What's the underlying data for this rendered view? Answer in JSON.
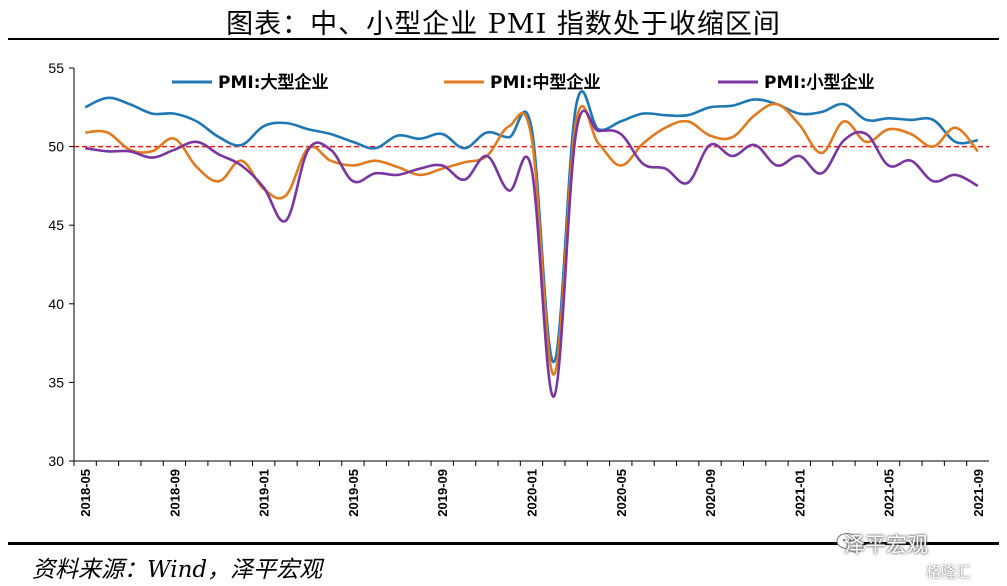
{
  "title": "图表：中、小型企业 PMI 指数处于收缩区间",
  "source": "资料来源：Wind，泽平宏观",
  "watermark": {
    "name": "泽平宏观",
    "platform": "格隆汇"
  },
  "colors": {
    "large": "#1f78b4",
    "medium": "#e07b1f",
    "small": "#7b35a0",
    "reference": "#e02020"
  },
  "chart_data": {
    "type": "line",
    "ylim": [
      30,
      55
    ],
    "yticks": [
      "30",
      "35",
      "40",
      "45",
      "50",
      "55"
    ],
    "reference_line": 50,
    "grid": false,
    "legend_position": "top",
    "x": [
      "2018-05",
      "2018-06",
      "2018-07",
      "2018-08",
      "2018-09",
      "2018-10",
      "2018-11",
      "2018-12",
      "2019-01",
      "2019-02",
      "2019-03",
      "2019-04",
      "2019-05",
      "2019-06",
      "2019-07",
      "2019-08",
      "2019-09",
      "2019-10",
      "2019-11",
      "2019-12",
      "2020-01",
      "2020-02",
      "2020-03",
      "2020-04",
      "2020-05",
      "2020-06",
      "2020-07",
      "2020-08",
      "2020-09",
      "2020-10",
      "2020-11",
      "2020-12",
      "2021-01",
      "2021-02",
      "2021-03",
      "2021-04",
      "2021-05",
      "2021-06",
      "2021-07",
      "2021-08",
      "2021-09"
    ],
    "xtick_labels": [
      "2018-05",
      "2018-09",
      "2019-01",
      "2019-05",
      "2019-09",
      "2020-01",
      "2020-05",
      "2020-09",
      "2021-01",
      "2021-05",
      "2021-09"
    ],
    "series": [
      {
        "name": "PMI:大型企业",
        "key": "large",
        "values": [
          52.5,
          53.1,
          52.7,
          52.1,
          52.1,
          51.6,
          50.6,
          50.1,
          51.3,
          51.5,
          51.1,
          50.8,
          50.3,
          49.9,
          50.7,
          50.5,
          50.8,
          49.9,
          50.9,
          50.6,
          51.2,
          36.3,
          52.6,
          51.1,
          51.6,
          52.1,
          52.0,
          52.0,
          52.5,
          52.6,
          53.0,
          52.7,
          52.1,
          52.2,
          52.7,
          51.7,
          51.8,
          51.7,
          51.7,
          50.3,
          50.4
        ]
      },
      {
        "name": "PMI:中型企业",
        "key": "medium",
        "values": [
          50.9,
          50.9,
          49.8,
          49.7,
          50.5,
          48.7,
          47.8,
          49.1,
          47.3,
          46.9,
          49.9,
          49.1,
          48.8,
          49.1,
          48.7,
          48.2,
          48.6,
          49.0,
          49.4,
          51.3,
          50.6,
          35.5,
          51.6,
          50.2,
          48.8,
          50.2,
          51.2,
          51.6,
          50.7,
          50.6,
          52.0,
          52.7,
          51.4,
          49.6,
          51.6,
          50.3,
          51.1,
          50.8,
          50.0,
          51.2,
          49.7
        ]
      },
      {
        "name": "PMI:小型企业",
        "key": "small",
        "values": [
          49.9,
          49.7,
          49.7,
          49.3,
          49.8,
          50.3,
          49.5,
          48.8,
          47.4,
          45.3,
          49.8,
          49.8,
          47.8,
          48.3,
          48.2,
          48.6,
          48.8,
          47.9,
          49.4,
          47.2,
          48.6,
          34.1,
          50.9,
          51.0,
          50.8,
          48.9,
          48.6,
          47.7,
          50.1,
          49.4,
          50.1,
          48.8,
          49.4,
          48.3,
          50.4,
          50.8,
          48.8,
          49.1,
          47.8,
          48.2,
          47.5
        ]
      }
    ]
  }
}
